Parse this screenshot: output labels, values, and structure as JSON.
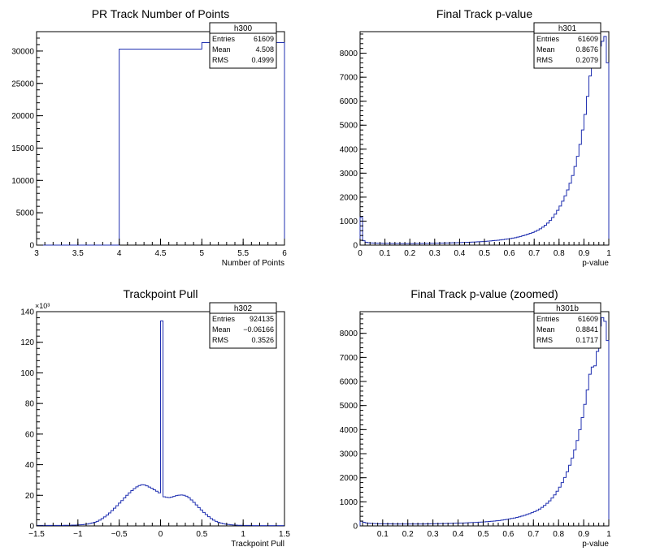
{
  "colors": {
    "histogram": "#1f2fb0",
    "axis": "#000000",
    "background": "#ffffff"
  },
  "chart_data": [
    {
      "name": "h300",
      "type": "histogram",
      "title": "PR Track Number of Points",
      "xlabel": "Number of Points",
      "ylabel": "",
      "xlim": [
        3,
        6
      ],
      "ylim": [
        0,
        33000
      ],
      "x_ticks": [
        "3",
        "3.5",
        "4",
        "4.5",
        "5",
        "5.5",
        "6"
      ],
      "y_ticks": [
        "0",
        "5000",
        "10000",
        "15000",
        "20000",
        "25000",
        "30000"
      ],
      "bins": [
        {
          "lo": 3,
          "hi": 4,
          "v": 0
        },
        {
          "lo": 4,
          "hi": 5,
          "v": 30300
        },
        {
          "lo": 5,
          "hi": 6,
          "v": 31300
        }
      ],
      "stats": {
        "header": "h300",
        "rows": [
          [
            "Entries",
            "61609"
          ],
          [
            "Mean",
            "4.508"
          ],
          [
            "RMS",
            "0.4999"
          ]
        ]
      }
    },
    {
      "name": "h301",
      "type": "histogram",
      "title": "Final Track p-value",
      "xlabel": "p-value",
      "ylabel": "",
      "xlim": [
        0,
        1
      ],
      "ylim": [
        0,
        8900
      ],
      "x_ticks": [
        "0",
        "0.1",
        "0.2",
        "0.3",
        "0.4",
        "0.5",
        "0.6",
        "0.7",
        "0.8",
        "0.9",
        "1"
      ],
      "y_ticks": [
        "0",
        "1000",
        "2000",
        "3000",
        "4000",
        "5000",
        "6000",
        "7000",
        "8000"
      ],
      "bins_range": [
        0,
        1
      ],
      "values": [
        1150,
        180,
        120,
        100,
        90,
        85,
        80,
        78,
        75,
        72,
        70,
        70,
        68,
        68,
        66,
        66,
        65,
        65,
        64,
        64,
        64,
        65,
        66,
        67,
        68,
        70,
        72,
        74,
        76,
        78,
        80,
        82,
        84,
        86,
        88,
        90,
        93,
        96,
        99,
        102,
        106,
        110,
        114,
        118,
        122,
        127,
        132,
        138,
        144,
        150,
        158,
        166,
        175,
        185,
        195,
        205,
        215,
        230,
        245,
        260,
        275,
        290,
        310,
        335,
        360,
        390,
        420,
        455,
        490,
        530,
        570,
        620,
        680,
        750,
        830,
        920,
        1030,
        1150,
        1290,
        1450,
        1630,
        1830,
        2050,
        2300,
        2580,
        2900,
        3280,
        3700,
        4200,
        4800,
        5450,
        6200,
        7050,
        7500,
        7600,
        7800,
        8300,
        8500,
        8700,
        7600
      ],
      "stats": {
        "header": "h301",
        "rows": [
          [
            "Entries",
            "61609"
          ],
          [
            "Mean",
            "0.8676"
          ],
          [
            "RMS",
            "0.2079"
          ]
        ]
      }
    },
    {
      "name": "h302",
      "type": "histogram",
      "title": "Trackpoint Pull",
      "xlabel": "Trackpoint Pull",
      "ylabel": "",
      "y_exponent": "×10³",
      "xlim": [
        -1.5,
        1.5
      ],
      "ylim": [
        0,
        140
      ],
      "x_ticks": [
        "−1.5",
        "−1",
        "−0.5",
        "0",
        "0.5",
        "1",
        "1.5"
      ],
      "y_ticks": [
        "0",
        "20",
        "40",
        "60",
        "80",
        "100",
        "120",
        "140"
      ],
      "bins_range": [
        -1.5,
        1.5
      ],
      "values": [
        0.3,
        0.3,
        0.3,
        0.3,
        0.3,
        0.3,
        0.3,
        0.3,
        0.3,
        0.3,
        0.3,
        0.4,
        0.4,
        0.4,
        0.5,
        0.5,
        0.6,
        0.7,
        0.8,
        1.0,
        1.2,
        1.5,
        1.9,
        2.4,
        3.0,
        3.8,
        4.8,
        5.9,
        7.1,
        8.5,
        10.0,
        11.6,
        13.2,
        14.9,
        16.6,
        18.3,
        20.0,
        21.6,
        23.1,
        24.4,
        25.5,
        26.4,
        26.9,
        26.8,
        26.2,
        25.4,
        24.6,
        23.6,
        22.7,
        21.6,
        134.0,
        19.0,
        18.7,
        18.5,
        18.8,
        19.3,
        19.8,
        20.1,
        20.2,
        20.0,
        19.4,
        18.4,
        17.0,
        15.4,
        13.7,
        12.0,
        10.4,
        8.8,
        7.4,
        6.0,
        4.8,
        3.8,
        3.0,
        2.3,
        1.8,
        1.4,
        1.1,
        0.9,
        0.7,
        0.6,
        0.5,
        0.4,
        0.4,
        0.3,
        0.3,
        0.3,
        0.3,
        0.2,
        0.2,
        0.2,
        0.2,
        0.2,
        0.2,
        0.2,
        0.2,
        0.2,
        0.2,
        0.2,
        0.2,
        0.2
      ],
      "stats": {
        "header": "h302",
        "rows": [
          [
            "Entries",
            "924135"
          ],
          [
            "Mean",
            "−0.06166"
          ],
          [
            "RMS",
            "0.3526"
          ]
        ]
      }
    },
    {
      "name": "h301b",
      "type": "histogram",
      "title": "Final Track p-value (zoomed)",
      "xlabel": "p-value",
      "ylabel": "",
      "xlim": [
        0.01,
        1
      ],
      "ylim": [
        0,
        8900
      ],
      "x_ticks": [
        "0.1",
        "0.2",
        "0.3",
        "0.4",
        "0.5",
        "0.6",
        "0.7",
        "0.8",
        "0.9",
        "1"
      ],
      "x_tick_values": [
        0.1,
        0.2,
        0.3,
        0.4,
        0.5,
        0.6,
        0.7,
        0.8,
        0.9,
        1.0
      ],
      "y_ticks": [
        "0",
        "1000",
        "2000",
        "3000",
        "4000",
        "5000",
        "6000",
        "7000",
        "8000"
      ],
      "bins_range": [
        0.01,
        1
      ],
      "values": [
        200,
        150,
        125,
        110,
        100,
        95,
        92,
        90,
        88,
        86,
        85,
        84,
        83,
        82,
        80,
        80,
        79,
        79,
        78,
        78,
        78,
        78,
        79,
        80,
        81,
        82,
        84,
        86,
        88,
        90,
        92,
        94,
        96,
        98,
        100,
        103,
        106,
        109,
        112,
        116,
        120,
        124,
        128,
        133,
        138,
        143,
        149,
        155,
        162,
        169,
        176,
        185,
        194,
        204,
        214,
        225,
        240,
        255,
        270,
        290,
        310,
        330,
        355,
        380,
        410,
        440,
        475,
        510,
        550,
        595,
        645,
        700,
        770,
        850,
        940,
        1040,
        1160,
        1290,
        1440,
        1610,
        1800,
        2010,
        2250,
        2520,
        2820,
        3160,
        3550,
        4000,
        4500,
        5050,
        5650,
        6300,
        6600,
        6650,
        7250,
        8300,
        8650,
        8500,
        7700
      ],
      "stats": {
        "header": "h301b",
        "rows": [
          [
            "Entries",
            "61609"
          ],
          [
            "Mean",
            "0.8841"
          ],
          [
            "RMS",
            "0.1717"
          ]
        ]
      }
    }
  ]
}
